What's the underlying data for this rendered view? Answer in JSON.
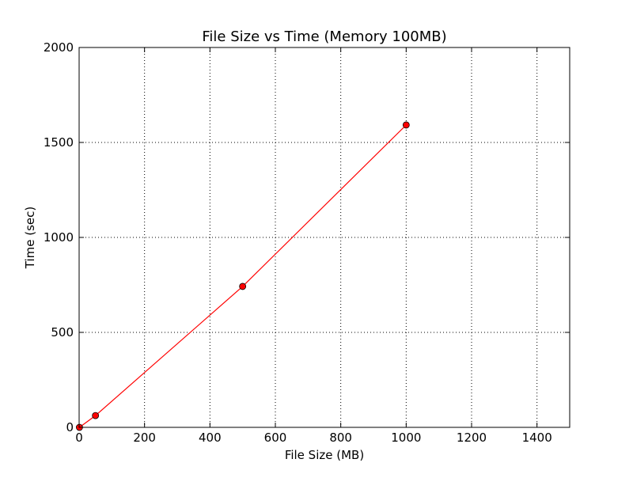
{
  "chart_data": {
    "type": "line",
    "title": "File Size vs Time (Memory 100MB)",
    "xlabel": "File Size (MB)",
    "ylabel": "Time (sec)",
    "xlim": [
      0,
      1500
    ],
    "ylim": [
      0,
      2000
    ],
    "xticks": [
      0,
      200,
      400,
      600,
      800,
      1000,
      1200,
      1400
    ],
    "yticks": [
      0,
      500,
      1000,
      1500,
      2000
    ],
    "xtick_labels": [
      "0",
      "200",
      "400",
      "600",
      "800",
      "1000",
      "1200",
      "1400"
    ],
    "ytick_labels": [
      "0",
      "500",
      "1000",
      "1500",
      "2000"
    ],
    "grid": true,
    "legend": null,
    "series": [
      {
        "x": [
          1,
          50,
          500,
          1000
        ],
        "y": [
          0,
          62,
          742,
          1592
        ],
        "color": "#ff0000",
        "marker": "circle"
      }
    ]
  }
}
